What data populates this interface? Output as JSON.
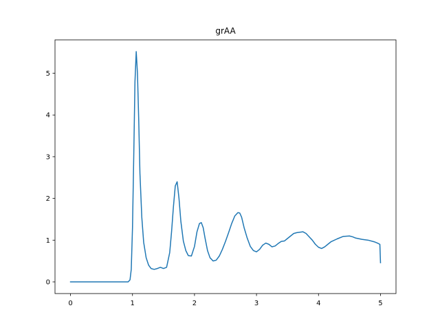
{
  "chart_data": {
    "type": "line",
    "title": "grAA",
    "xlabel": "",
    "ylabel": "",
    "xlim": [
      -0.25,
      5.25
    ],
    "ylim": [
      -0.28,
      5.8
    ],
    "xticks": [
      0,
      1,
      2,
      3,
      4,
      5
    ],
    "yticks": [
      0,
      1,
      2,
      3,
      4,
      5
    ],
    "xtick_labels": [
      "0",
      "1",
      "2",
      "3",
      "4",
      "5"
    ],
    "ytick_labels": [
      "0",
      "1",
      "2",
      "3",
      "4",
      "5"
    ],
    "grid": false,
    "line_color": "#1f77b4",
    "series": [
      {
        "x": [
          0.0,
          0.25,
          0.5,
          0.75,
          0.93,
          0.96,
          0.98,
          1.0,
          1.02,
          1.04,
          1.06,
          1.08,
          1.1,
          1.12,
          1.15,
          1.18,
          1.22,
          1.26,
          1.3,
          1.35,
          1.4,
          1.45,
          1.5,
          1.55,
          1.6,
          1.63,
          1.66,
          1.69,
          1.72,
          1.75,
          1.78,
          1.82,
          1.86,
          1.9,
          1.95,
          2.0,
          2.04,
          2.08,
          2.11,
          2.14,
          2.17,
          2.21,
          2.25,
          2.3,
          2.35,
          2.4,
          2.45,
          2.5,
          2.55,
          2.6,
          2.65,
          2.7,
          2.73,
          2.76,
          2.8,
          2.85,
          2.9,
          2.95,
          3.0,
          3.05,
          3.1,
          3.15,
          3.2,
          3.25,
          3.3,
          3.35,
          3.4,
          3.45,
          3.5,
          3.55,
          3.6,
          3.65,
          3.7,
          3.75,
          3.8,
          3.85,
          3.9,
          3.95,
          4.0,
          4.05,
          4.1,
          4.15,
          4.2,
          4.3,
          4.4,
          4.5,
          4.55,
          4.6,
          4.7,
          4.8,
          4.9,
          4.95,
          4.99,
          5.0
        ],
        "y": [
          0.0,
          0.0,
          0.0,
          0.0,
          0.0,
          0.05,
          0.3,
          1.3,
          3.0,
          4.8,
          5.52,
          5.0,
          3.9,
          2.6,
          1.55,
          0.95,
          0.58,
          0.4,
          0.32,
          0.3,
          0.32,
          0.35,
          0.32,
          0.35,
          0.7,
          1.2,
          1.8,
          2.3,
          2.4,
          2.0,
          1.45,
          0.98,
          0.75,
          0.63,
          0.62,
          0.85,
          1.2,
          1.4,
          1.42,
          1.3,
          1.05,
          0.75,
          0.58,
          0.5,
          0.52,
          0.62,
          0.78,
          0.97,
          1.18,
          1.4,
          1.58,
          1.66,
          1.65,
          1.55,
          1.3,
          1.05,
          0.85,
          0.75,
          0.72,
          0.78,
          0.88,
          0.93,
          0.9,
          0.84,
          0.86,
          0.92,
          0.97,
          0.98,
          1.04,
          1.1,
          1.16,
          1.18,
          1.19,
          1.2,
          1.16,
          1.08,
          1.0,
          0.9,
          0.83,
          0.8,
          0.84,
          0.9,
          0.96,
          1.03,
          1.09,
          1.1,
          1.08,
          1.05,
          1.02,
          1.0,
          0.96,
          0.93,
          0.9,
          0.46
        ]
      }
    ]
  }
}
